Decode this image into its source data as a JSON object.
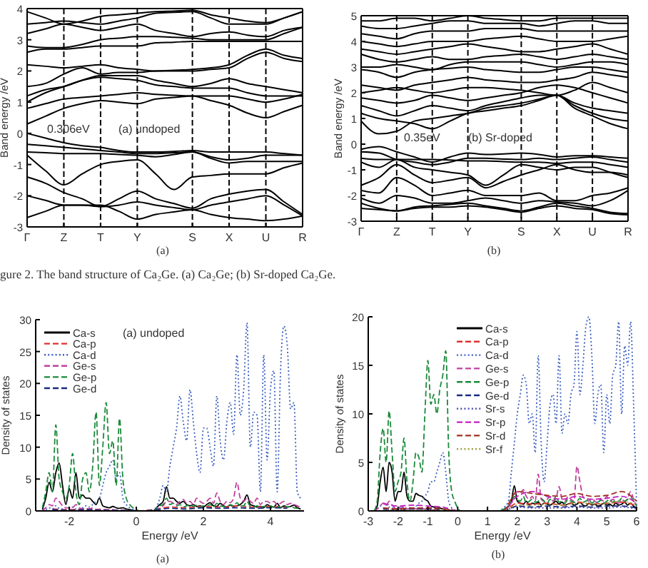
{
  "chart_data": [
    {
      "type": "line",
      "ylabel": "Band energy /eV",
      "categories": [
        "Γ",
        null,
        "Z",
        null,
        "T",
        null,
        "Y",
        null,
        null,
        "S",
        null,
        "X",
        null,
        "U",
        null,
        "R"
      ],
      "ylim": [
        -3,
        4
      ],
      "yticks": [
        -3,
        -2,
        -1,
        0,
        1,
        2,
        3,
        4
      ],
      "ref_lines": [
        {
          "axis": "x",
          "value": "Z",
          "line_style": "dashed"
        },
        {
          "axis": "x",
          "value": "T",
          "line_style": "dashed"
        },
        {
          "axis": "x",
          "value": "Y",
          "line_style": "dashed"
        },
        {
          "axis": "x",
          "value": "S",
          "line_style": "dashed"
        },
        {
          "axis": "x",
          "value": "X",
          "line_style": "dashed"
        },
        {
          "axis": "x",
          "value": "U",
          "line_style": "dashed"
        }
      ],
      "annotations": [
        "0.306eV",
        "(a) undoped",
        "(a)",
        "gure 2. The band structure of Ca₂Ge. (a) Ca₂Ge; (b) Sr-doped Ca₂Ge."
      ],
      "series": [
        {
          "color": "#000000",
          "values": [
            0.3,
            0.55,
            0.8,
            0.95,
            1.05,
            1.0,
            0.95,
            1.1,
            1.15,
            1.2,
            1.05,
            0.9,
            0.65,
            0.5,
            0.7,
            0.9
          ]
        },
        {
          "color": "#000000",
          "values": [
            0.8,
            0.95,
            1.1,
            1.15,
            1.2,
            1.25,
            1.3,
            1.25,
            1.22,
            1.2,
            1.2,
            1.2,
            1.1,
            1.0,
            1.1,
            1.25
          ]
        },
        {
          "color": "#000000",
          "values": [
            1.0,
            1.3,
            1.5,
            1.7,
            1.8,
            1.75,
            1.7,
            1.55,
            1.5,
            1.45,
            1.45,
            1.45,
            1.3,
            1.2,
            1.2,
            1.2
          ]
        },
        {
          "color": "#000000",
          "values": [
            1.2,
            1.4,
            1.5,
            1.7,
            1.85,
            1.85,
            1.85,
            1.7,
            1.6,
            1.5,
            1.6,
            1.75,
            1.6,
            1.5,
            1.4,
            1.3
          ]
        },
        {
          "color": "#000000",
          "values": [
            1.5,
            1.6,
            1.9,
            2.1,
            1.9,
            1.95,
            1.95,
            2.0,
            2.0,
            2.0,
            2.05,
            2.1,
            2.4,
            2.6,
            2.4,
            2.3
          ]
        },
        {
          "color": "#000000",
          "values": [
            2.2,
            2.15,
            2.1,
            2.15,
            2.2,
            2.1,
            2.05,
            2.0,
            2.02,
            2.05,
            2.1,
            2.2,
            2.5,
            2.7,
            2.5,
            2.4
          ]
        },
        {
          "color": "#000000",
          "values": [
            2.6,
            2.7,
            2.7,
            2.75,
            2.8,
            2.8,
            2.8,
            2.9,
            2.92,
            2.95,
            2.95,
            2.95,
            2.95,
            2.95,
            2.95,
            2.95
          ]
        },
        {
          "color": "#000000",
          "values": [
            2.8,
            2.75,
            2.75,
            2.85,
            3.0,
            3.05,
            3.1,
            3.1,
            3.08,
            3.05,
            3.0,
            3.0,
            3.0,
            3.0,
            3.2,
            3.4
          ]
        },
        {
          "color": "#000000",
          "values": [
            3.2,
            3.35,
            3.5,
            3.4,
            3.3,
            3.4,
            3.5,
            3.3,
            3.2,
            3.1,
            3.2,
            3.25,
            3.15,
            3.1,
            3.3,
            3.4
          ]
        },
        {
          "color": "#000000",
          "values": [
            3.5,
            3.55,
            3.6,
            3.55,
            3.5,
            3.6,
            3.7,
            3.85,
            3.88,
            3.9,
            3.7,
            3.5,
            3.5,
            3.5,
            3.7,
            3.9
          ]
        },
        {
          "color": "#000000",
          "values": [
            3.9,
            3.7,
            3.5,
            3.6,
            3.75,
            3.8,
            3.85,
            3.9,
            3.92,
            3.95,
            3.8,
            3.7,
            3.6,
            3.55,
            3.7,
            3.9
          ]
        },
        {
          "color": "#000000",
          "values": [
            0,
            -0.15,
            -0.3,
            -0.4,
            -0.45,
            -0.55,
            -0.6,
            -0.6,
            -0.58,
            -0.55,
            -0.6,
            -0.6,
            -0.6,
            -0.6,
            -0.65,
            -0.7
          ]
        },
        {
          "color": "#000000",
          "values": [
            -0.35,
            -0.4,
            -0.45,
            -0.5,
            -0.55,
            -0.6,
            -0.65,
            -0.65,
            -0.62,
            -0.6,
            -0.75,
            -0.85,
            -0.8,
            -0.7,
            -0.7,
            -0.7
          ]
        },
        {
          "color": "#000000",
          "values": [
            -0.6,
            -0.62,
            -0.65,
            -0.65,
            -0.65,
            -0.68,
            -0.7,
            -0.75,
            -0.68,
            -0.6,
            -0.8,
            -0.95,
            -0.9,
            -0.9,
            -0.9,
            -0.9
          ]
        },
        {
          "color": "#000000",
          "values": [
            -0.7,
            -1.2,
            -1.65,
            -1.3,
            -1.0,
            -0.9,
            -0.85,
            -1.3,
            -1.8,
            -1.4,
            -1.35,
            -1.3,
            -1.3,
            -1.3,
            -1.1,
            -0.95
          ]
        },
        {
          "color": "#000000",
          "values": [
            -1.4,
            -1.6,
            -1.9,
            -2.1,
            -2.35,
            -2.1,
            -1.85,
            -2.1,
            -2.25,
            -2.4,
            -2.1,
            -1.95,
            -1.85,
            -1.8,
            -2.2,
            -2.6
          ]
        },
        {
          "color": "#000000",
          "values": [
            -2.0,
            -2.15,
            -2.3,
            -2.3,
            -2.3,
            -2.5,
            -2.75,
            -2.6,
            -2.52,
            -2.45,
            -2.6,
            -2.7,
            -2.75,
            -2.8,
            -2.75,
            -2.65
          ]
        },
        {
          "color": "#000000",
          "values": [
            -2.7,
            -2.5,
            -2.3,
            -2.3,
            -2.35,
            -2.3,
            -2.2,
            -2.3,
            -2.38,
            -2.45,
            -2.3,
            -2.2,
            -2.1,
            -2.0,
            -2.3,
            -2.65
          ]
        }
      ]
    },
    {
      "type": "line",
      "ylabel": "Band energy /eV",
      "categories": [
        "Γ",
        null,
        "Z",
        null,
        "T",
        null,
        "Y",
        null,
        null,
        "S",
        null,
        "X",
        null,
        "U",
        null,
        "R"
      ],
      "ylim": [
        -3,
        5
      ],
      "yticks": [
        -3,
        -2,
        -1,
        0,
        1,
        2,
        3,
        4,
        5
      ],
      "ref_lines": [
        {
          "axis": "x",
          "value": "Z",
          "line_style": "dashed"
        },
        {
          "axis": "x",
          "value": "T",
          "line_style": "dashed"
        },
        {
          "axis": "x",
          "value": "Y",
          "line_style": "dashed"
        },
        {
          "axis": "x",
          "value": "S",
          "line_style": "dashed"
        },
        {
          "axis": "x",
          "value": "X",
          "line_style": "dashed"
        },
        {
          "axis": "x",
          "value": "U",
          "line_style": "dashed"
        }
      ],
      "annotations": [
        "0.35eV",
        "(b) Sr-doped",
        "(b)"
      ],
      "series": [
        {
          "color": "#000000",
          "values": [
            0.9,
            0.4,
            0.5,
            0.9,
            1.0,
            1.1,
            1.2,
            1.4,
            1.5,
            1.6,
            1.75,
            1.9,
            1.4,
            1.1,
            0.8,
            0.6
          ]
        },
        {
          "color": "#000000",
          "values": [
            1.2,
            1.0,
            0.9,
            0.8,
            0.6,
            0.9,
            1.2,
            1.3,
            1.4,
            1.5,
            1.7,
            1.9,
            1.5,
            1.2,
            1.0,
            0.9
          ]
        },
        {
          "color": "#000000",
          "values": [
            1.5,
            1.3,
            1.1,
            1.3,
            1.5,
            1.4,
            1.3,
            1.5,
            1.65,
            1.8,
            1.9,
            1.9,
            1.6,
            1.4,
            1.3,
            1.2
          ]
        },
        {
          "color": "#000000",
          "values": [
            1.8,
            1.7,
            1.6,
            1.7,
            1.9,
            1.8,
            1.7,
            1.8,
            1.9,
            2.0,
            2.2,
            2.3,
            2.2,
            2.0,
            1.8,
            1.6
          ]
        },
        {
          "color": "#000000",
          "values": [
            2.0,
            2.1,
            2.2,
            2.1,
            2.0,
            2.1,
            2.2,
            2.2,
            2.15,
            2.1,
            2.0,
            1.9,
            2.1,
            2.4,
            2.2,
            2.0
          ]
        },
        {
          "color": "#000000",
          "values": [
            2.3,
            2.2,
            2.1,
            2.3,
            2.4,
            2.5,
            2.6,
            2.5,
            2.45,
            2.4,
            2.4,
            2.5,
            2.6,
            2.8,
            2.7,
            2.6
          ]
        },
        {
          "color": "#000000",
          "values": [
            2.9,
            2.8,
            2.6,
            2.8,
            2.9,
            2.95,
            3.0,
            2.9,
            2.85,
            2.8,
            2.8,
            2.9,
            3.0,
            3.0,
            2.9,
            2.8
          ]
        },
        {
          "color": "#000000",
          "values": [
            3.0,
            3.0,
            3.1,
            3.0,
            2.9,
            3.1,
            3.2,
            3.2,
            3.2,
            3.2,
            3.1,
            3.0,
            3.1,
            3.2,
            3.2,
            3.1
          ]
        },
        {
          "color": "#000000",
          "values": [
            3.5,
            3.3,
            3.2,
            3.3,
            3.4,
            3.3,
            3.3,
            3.4,
            3.45,
            3.5,
            3.4,
            3.3,
            3.4,
            3.5,
            3.4,
            3.3
          ]
        },
        {
          "color": "#000000",
          "values": [
            3.7,
            3.6,
            3.5,
            3.6,
            3.7,
            3.8,
            3.9,
            3.8,
            3.7,
            3.6,
            3.6,
            3.7,
            3.8,
            3.9,
            3.7,
            3.5
          ]
        },
        {
          "color": "#000000",
          "values": [
            4.0,
            3.9,
            3.8,
            3.9,
            4.0,
            4.0,
            4.0,
            4.1,
            4.15,
            4.2,
            4.1,
            4.0,
            4.0,
            4.0,
            4.1,
            4.2
          ]
        },
        {
          "color": "#000000",
          "values": [
            4.3,
            4.2,
            4.1,
            4.3,
            4.4,
            4.4,
            4.4,
            4.5,
            4.5,
            4.5,
            4.4,
            4.4,
            4.4,
            4.4,
            4.4,
            4.4
          ]
        },
        {
          "color": "#000000",
          "values": [
            4.6,
            4.5,
            4.5,
            4.6,
            4.7,
            4.8,
            4.8,
            4.7,
            4.7,
            4.7,
            4.6,
            4.7,
            4.8,
            4.8,
            4.7,
            4.7
          ]
        },
        {
          "color": "#000000",
          "values": [
            4.8,
            4.8,
            4.9,
            4.9,
            4.8,
            4.9,
            5.0,
            4.9,
            4.85,
            4.8,
            4.8,
            4.9,
            4.9,
            4.9,
            4.9,
            4.9
          ]
        },
        {
          "color": "#000000",
          "values": [
            -0.2,
            -0.1,
            -0.3,
            -0.5,
            -0.7,
            -0.5,
            -0.35,
            -0.4,
            -0.38,
            -0.35,
            -0.4,
            -0.5,
            -0.45,
            -0.45,
            -0.5,
            -0.55
          ]
        },
        {
          "color": "#000000",
          "values": [
            -0.3,
            -0.35,
            -0.6,
            -0.7,
            -0.8,
            -0.7,
            -0.55,
            -0.55,
            -0.58,
            -0.6,
            -0.55,
            -0.6,
            -0.55,
            -0.5,
            -0.6,
            -0.7
          ]
        },
        {
          "color": "#000000",
          "values": [
            -0.55,
            -0.6,
            -0.6,
            -0.6,
            -0.6,
            -0.62,
            -0.65,
            -0.65,
            -0.68,
            -0.7,
            -0.7,
            -0.75,
            -0.7,
            -0.7,
            -0.8,
            -0.9
          ]
        },
        {
          "color": "#000000",
          "values": [
            -0.7,
            -0.9,
            -0.6,
            -0.9,
            -1.0,
            -1.1,
            -1.2,
            -1.6,
            -1.2,
            -0.8,
            -0.9,
            -1.0,
            -0.9,
            -0.9,
            -1.1,
            -1.3
          ]
        },
        {
          "color": "#000000",
          "values": [
            -1.6,
            -1.3,
            -0.8,
            -1.2,
            -1.5,
            -1.4,
            -1.3,
            -1.7,
            -1.45,
            -1.2,
            -1.0,
            -0.8,
            -1.0,
            -1.1,
            -1.1,
            -1.2
          ]
        },
        {
          "color": "#000000",
          "values": [
            -1.8,
            -1.9,
            -1.3,
            -1.6,
            -2.0,
            -1.9,
            -1.8,
            -2.0,
            -2.0,
            -2.0,
            -1.9,
            -2.2,
            -2.2,
            -2.0,
            -1.9,
            -1.7
          ]
        },
        {
          "color": "#000000",
          "values": [
            -2.1,
            -2.3,
            -2.0,
            -2.1,
            -2.3,
            -2.3,
            -2.2,
            -2.1,
            -2.2,
            -2.3,
            -2.2,
            -2.25,
            -2.3,
            -2.4,
            -2.2,
            -1.8
          ]
        },
        {
          "color": "#000000",
          "values": [
            -2.3,
            -2.5,
            -2.6,
            -2.45,
            -2.4,
            -2.35,
            -2.3,
            -2.4,
            -2.5,
            -2.6,
            -2.45,
            -2.3,
            -2.4,
            -2.5,
            -2.65,
            -2.7
          ]
        },
        {
          "color": "#000000",
          "values": [
            -2.5,
            -2.55,
            -2.6,
            -2.5,
            -2.45,
            -2.45,
            -2.4,
            -2.45,
            -2.55,
            -2.65,
            -2.5,
            -2.4,
            -2.5,
            -2.55,
            -2.7,
            -2.75
          ]
        }
      ]
    },
    {
      "type": "line",
      "xlabel": "Energy /eV",
      "ylabel": "Density of states",
      "legend": "top left",
      "xlim": [
        -3,
        5
      ],
      "xticks": [
        -2,
        0,
        2,
        4
      ],
      "ylim": [
        0,
        30
      ],
      "yticks": [
        0,
        5,
        10,
        15,
        20,
        25,
        30
      ],
      "annotations": [
        "(a) undoped",
        "(a)"
      ],
      "x": [
        -2.8,
        -2.7,
        -2.6,
        -2.5,
        -2.4,
        -2.3,
        -2.2,
        -2.1,
        -2.0,
        -1.9,
        -1.8,
        -1.7,
        -1.6,
        -1.5,
        -1.4,
        -1.3,
        -1.2,
        -1.1,
        -1.0,
        -0.9,
        -0.8,
        -0.7,
        -0.6,
        -0.5,
        -0.4,
        -0.3,
        -0.2,
        -0.1,
        0,
        0.1,
        0.2,
        0.3,
        0.4,
        0.5,
        0.6,
        0.7,
        0.8,
        0.9,
        1.0,
        1.1,
        1.2,
        1.3,
        1.4,
        1.5,
        1.6,
        1.7,
        1.8,
        1.9,
        2.0,
        2.1,
        2.2,
        2.3,
        2.4,
        2.5,
        2.6,
        2.7,
        2.8,
        2.9,
        3.0,
        3.1,
        3.2,
        3.3,
        3.4,
        3.5,
        3.6,
        3.7,
        3.8,
        3.9,
        4.0,
        4.1,
        4.2,
        4.3,
        4.4,
        4.5,
        4.6,
        4.7,
        4.8,
        4.9
      ],
      "series": [
        {
          "name": "Ca-s",
          "color": "#000000",
          "line_style": "solid",
          "values": [
            0.2,
            2,
            4.5,
            3,
            6,
            7.5,
            4,
            1,
            3.5,
            2,
            6,
            2,
            2.5,
            2,
            2,
            1.5,
            1,
            2,
            0.8,
            0.6,
            0.5,
            0.7,
            0.5,
            0.4,
            0.5,
            0.3,
            0.2,
            0.1,
            0,
            0,
            0,
            0,
            0,
            0,
            0.5,
            1,
            1.5,
            3.8,
            2,
            2,
            1.5,
            1.2,
            1.5,
            1,
            0.8,
            1,
            0.7,
            0.8,
            0.6,
            1,
            1.3,
            0.8,
            0.7,
            1.2,
            0.8,
            0.6,
            0.9,
            0.7,
            0.8,
            1,
            1.5,
            2.5,
            1,
            0.8,
            0.6,
            0.7,
            0.5,
            1,
            0.7,
            0.6,
            1.2,
            0.5,
            0.8,
            0.6,
            0.7,
            0.9,
            0.5,
            0.3
          ]
        },
        {
          "name": "Ca-p",
          "color": "#e03030",
          "line_style": "dashed",
          "x": [
            -2.5,
            -2,
            -1.5,
            -1,
            -0.5,
            0,
            0.5,
            1,
            1.5,
            2,
            2.5,
            3,
            3.5,
            4,
            4.5
          ],
          "values": [
            0.3,
            0.2,
            0.3,
            0.2,
            0.1,
            0,
            0.2,
            0.6,
            0.5,
            0.7,
            0.6,
            0.8,
            0.6,
            0.7,
            0.5
          ]
        },
        {
          "name": "Ca-d",
          "color": "#3b5fc0",
          "line_style": "dotted",
          "values": [
            0,
            0.2,
            0.5,
            0.3,
            0.8,
            0.4,
            0.3,
            0.2,
            0.5,
            0.6,
            0.3,
            0.2,
            0.5,
            0.8,
            0.6,
            1,
            1.5,
            2,
            4,
            6,
            7,
            8,
            5,
            6,
            2,
            1,
            0.5,
            0.2,
            0,
            0,
            0,
            0,
            0,
            0,
            0.5,
            2,
            4,
            3,
            7,
            10,
            13,
            18,
            14,
            11,
            19,
            14,
            9,
            6,
            13,
            13,
            10,
            7,
            18,
            11,
            8,
            14,
            17,
            12,
            24.5,
            15,
            19,
            29.5,
            10,
            15.5,
            15,
            3,
            24.5,
            8,
            19,
            22,
            3,
            22,
            29,
            26,
            16,
            17,
            3,
            2
          ]
        },
        {
          "name": "Ge-s",
          "color": "#c040a0",
          "line_style": "dashed",
          "values": [
            0,
            0.5,
            1,
            0.8,
            2,
            1.5,
            0.8,
            0.5,
            0.5,
            0.5,
            1,
            0.5,
            0.3,
            0.4,
            0.3,
            0.5,
            0.2,
            0.3,
            0.2,
            0.2,
            0.1,
            0.2,
            0.1,
            0.1,
            0.1,
            0,
            0,
            0,
            0,
            0,
            0,
            0,
            0,
            0,
            0.2,
            0.5,
            0.8,
            1.5,
            1.5,
            1.2,
            1,
            1.5,
            1.8,
            1.2,
            1.5,
            1,
            2,
            1.5,
            1.2,
            1.5,
            2,
            1.2,
            2.8,
            1.5,
            1,
            1.5,
            1.3,
            2,
            4.5,
            2,
            1.5,
            2,
            1.5,
            1.2,
            2,
            1,
            1.5,
            1.5,
            1.2,
            1.5,
            1,
            1.2,
            1.5,
            1,
            1.2,
            1,
            0.8,
            0.5
          ]
        },
        {
          "name": "Ge-p",
          "color": "#1a8a3a",
          "line_style": "dashed",
          "values": [
            0.5,
            3,
            6,
            3,
            13.5,
            5,
            3,
            2,
            4,
            9,
            3,
            1,
            5,
            6,
            3,
            7,
            15.5,
            4,
            10,
            17,
            9,
            11,
            4,
            14.5,
            5,
            2,
            1,
            0.5,
            0.2,
            0,
            0,
            0,
            0,
            0,
            0.3,
            0.8,
            1,
            2,
            1,
            1.2,
            0.8,
            1,
            0.6,
            0.8,
            1,
            0.7,
            0.9,
            0.6,
            0.8,
            0.7,
            1,
            0.6,
            1.2,
            0.8,
            0.7,
            0.6,
            1,
            0.8,
            1.3,
            0.7,
            0.8,
            1.5,
            0.7,
            0.6,
            0.8,
            0.5,
            0.7,
            0.6,
            0.8,
            0.6,
            0.7,
            0.5,
            0.9,
            0.6,
            0.7,
            0.5,
            0.4,
            0.3
          ]
        },
        {
          "name": "Ge-d",
          "color": "#1a2a80",
          "line_style": "dashed",
          "x": [
            -2.5,
            -2,
            -1.5,
            -1,
            -0.5,
            0,
            0.5,
            1,
            1.5,
            2,
            2.5,
            3,
            3.5,
            4,
            4.5
          ],
          "values": [
            0.2,
            0.1,
            0.2,
            0.1,
            0.1,
            0,
            0.1,
            0.4,
            0.3,
            0.5,
            0.4,
            0.5,
            0.4,
            0.5,
            0.4
          ]
        }
      ]
    },
    {
      "type": "line",
      "xlabel": "Energy /eV",
      "ylabel": "Density of states",
      "legend": "top",
      "xlim": [
        -3,
        6
      ],
      "xticks": [
        -3,
        -2,
        -1,
        0,
        1,
        2,
        3,
        4,
        5,
        6
      ],
      "ylim": [
        0,
        20
      ],
      "yticks": [
        0,
        5,
        10,
        15,
        20
      ],
      "annotations": [
        "(b)"
      ],
      "x": [
        -2.8,
        -2.7,
        -2.6,
        -2.5,
        -2.4,
        -2.3,
        -2.2,
        -2.1,
        -2.0,
        -1.9,
        -1.8,
        -1.7,
        -1.6,
        -1.5,
        -1.4,
        -1.3,
        -1.2,
        -1.1,
        -1.0,
        -0.9,
        -0.8,
        -0.7,
        -0.6,
        -0.5,
        -0.4,
        -0.3,
        -0.2,
        -0.1,
        0,
        0.1,
        0.2,
        0.3,
        0.4,
        0.5,
        0.6,
        0.7,
        0.8,
        0.9,
        1.0,
        1.1,
        1.2,
        1.3,
        1.4,
        1.5,
        1.6,
        1.7,
        1.8,
        1.9,
        2.0,
        2.1,
        2.2,
        2.3,
        2.4,
        2.5,
        2.6,
        2.7,
        2.8,
        2.9,
        3.0,
        3.1,
        3.2,
        3.3,
        3.4,
        3.5,
        3.6,
        3.7,
        3.8,
        3.9,
        4.0,
        4.1,
        4.2,
        4.3,
        4.4,
        4.5,
        4.6,
        4.7,
        4.8,
        4.9,
        5.0,
        5.1,
        5.2,
        5.3,
        5.4,
        5.5,
        5.6,
        5.7,
        5.8,
        5.9,
        6.0
      ],
      "series": [
        {
          "name": "Ca-s",
          "color": "#000000",
          "line_style": "solid",
          "values": [
            0,
            0.5,
            3,
            4.5,
            2,
            5,
            4,
            1,
            2,
            2,
            4,
            1.5,
            1,
            1,
            1.8,
            1.6,
            1.5,
            1.2,
            1,
            0.5,
            0.4,
            0.3,
            0.3,
            0.2,
            0.2,
            0.1,
            0,
            0,
            0,
            0,
            0,
            0,
            0,
            0,
            0,
            0,
            0,
            0,
            0,
            0,
            0,
            0,
            0,
            0,
            0.2,
            0.5,
            1,
            2.6,
            1,
            0.8,
            0.7,
            1,
            0.6,
            0.8,
            0.7,
            0.9,
            0.6,
            0.8,
            0.7,
            0.6,
            0.8,
            1,
            0.7,
            0.9,
            0.6,
            0.7,
            0.8,
            0.6,
            0.7,
            0.9,
            0.6,
            0.5,
            0.8,
            0.6,
            0.7,
            0.5,
            0.6,
            0.8,
            0.6,
            0.7,
            0.5,
            0.8,
            0.6,
            0.7,
            0.9,
            0.6,
            0.8,
            0.5,
            0.3
          ]
        },
        {
          "name": "Ca-p",
          "color": "#e03030",
          "line_style": "dashed",
          "x": [
            -2.5,
            -2,
            -1.5,
            -1,
            -0.5,
            0,
            0.5,
            1,
            1.5,
            2,
            2.5,
            3,
            3.5,
            4,
            4.5,
            5,
            5.5,
            6
          ],
          "values": [
            0.3,
            0.2,
            0.3,
            0.3,
            0.2,
            0,
            0,
            0,
            0,
            0.8,
            0.7,
            0.8,
            0.6,
            0.9,
            0.7,
            0.8,
            0.9,
            0.5
          ]
        },
        {
          "name": "Ca-d",
          "color": "#3b5fc0",
          "line_style": "dotted",
          "values": [
            0,
            0.2,
            0.5,
            0.3,
            0.6,
            0.4,
            0.3,
            0.2,
            0.3,
            0.4,
            0.3,
            0.2,
            0.3,
            0.6,
            0.5,
            0.8,
            1,
            1.5,
            2,
            3,
            3,
            4,
            5,
            6,
            4,
            1,
            0.3,
            0.1,
            0,
            0,
            0,
            0,
            0,
            0,
            0,
            0,
            0,
            0,
            0,
            0,
            0,
            0,
            0,
            0.2,
            0.5,
            1,
            4,
            7,
            10,
            12,
            14,
            13,
            9,
            10,
            6,
            16,
            7,
            3,
            7,
            11,
            12,
            9,
            16,
            8,
            10,
            9,
            12,
            13,
            18.5,
            12,
            15,
            19,
            20,
            16,
            9,
            12,
            13,
            6,
            12,
            9,
            14,
            15,
            19.5,
            10,
            17,
            15,
            19.5,
            11,
            0.5
          ]
        },
        {
          "name": "Ge-s",
          "color": "#c040a0",
          "line_style": "dashed",
          "values": [
            0,
            0.2,
            0.5,
            0.8,
            0.5,
            1,
            0.6,
            0.3,
            0.2,
            0.3,
            0.5,
            0.2,
            0.2,
            0.3,
            0.2,
            0.3,
            0.2,
            0.2,
            0.1,
            0.1,
            0.1,
            0.1,
            0,
            0,
            0,
            0,
            0,
            0,
            0,
            0,
            0,
            0,
            0,
            0,
            0,
            0,
            0,
            0,
            0,
            0,
            0,
            0,
            0,
            0,
            0.2,
            0.4,
            0.8,
            1.5,
            2,
            1.8,
            2.2,
            1.5,
            1.2,
            1.5,
            1,
            3.8,
            1.2,
            1,
            1.2,
            1.5,
            1,
            1.3,
            2.5,
            1.2,
            1,
            1.5,
            1.2,
            1,
            4.6,
            3,
            1.5,
            1.2,
            1,
            1.3,
            1,
            0.8,
            1.2,
            1,
            1.5,
            1,
            1.2,
            1,
            0.8,
            1.2,
            1,
            1.3,
            2,
            1.2,
            0.5
          ]
        },
        {
          "name": "Ge-p",
          "color": "#1a8a3a",
          "line_style": "dashed",
          "values": [
            0,
            1,
            6,
            8.5,
            5,
            10.3,
            6,
            2,
            3,
            4,
            7.5,
            3,
            1,
            3,
            6,
            5.5,
            4,
            10,
            15.5,
            11,
            12,
            10,
            12.5,
            14,
            16.5,
            6,
            2,
            1,
            0.3,
            0,
            0,
            0,
            0,
            0,
            0,
            0,
            0,
            0,
            0,
            0,
            0,
            0,
            0,
            0.1,
            0.3,
            0.5,
            1,
            1.5,
            1.2,
            1,
            1.5,
            0.8,
            1,
            1.2,
            0.9,
            1,
            1.3,
            1,
            0.8,
            1.2,
            1,
            1.5,
            0.9,
            1,
            0.8,
            1.2,
            1,
            0.9,
            1,
            1.3,
            0.9,
            1,
            1.2,
            0.8,
            1,
            0.9,
            1.1,
            0.8,
            1,
            1.2,
            0.9,
            1.1,
            1,
            1.3,
            1,
            1.2,
            1.4,
            1,
            0.5
          ]
        },
        {
          "name": "Ge-d",
          "color": "#1a2a80",
          "line_style": "dashed",
          "x": [
            -2.5,
            -2,
            -1.5,
            -1,
            -0.5,
            0,
            0.5,
            1,
            1.5,
            2,
            2.5,
            3,
            3.5,
            4,
            4.5,
            5,
            5.5,
            6
          ],
          "values": [
            0.2,
            0.1,
            0.2,
            0.2,
            0.1,
            0,
            0,
            0,
            0,
            0.5,
            0.4,
            0.5,
            0.4,
            0.5,
            0.4,
            0.5,
            0.5,
            0.3
          ]
        },
        {
          "name": "Sr-s",
          "color": "#5050b0",
          "line_style": "dotted",
          "x": [
            -2.5,
            -2,
            -1.5,
            -1,
            -0.5,
            0,
            0.5,
            1,
            1.5,
            2,
            2.5,
            3,
            3.5,
            4,
            4.5,
            5,
            5.5,
            6
          ],
          "values": [
            0.1,
            0.1,
            0.1,
            0.1,
            0.1,
            0,
            0,
            0,
            0,
            0.4,
            0.3,
            0.3,
            0.3,
            0.4,
            0.3,
            0.3,
            0.4,
            0.2
          ]
        },
        {
          "name": "Sr-p",
          "color": "#c020c0",
          "line_style": "dashed",
          "x": [
            -2.5,
            -2,
            -1.5,
            -1,
            -0.5,
            0,
            0.5,
            1,
            1.5,
            2,
            2.5,
            3,
            3.5,
            4,
            4.5,
            5,
            5.5,
            6
          ],
          "values": [
            0.8,
            0.5,
            0.6,
            0.5,
            0.4,
            0,
            0,
            0,
            0,
            1.5,
            2,
            1.5,
            1.2,
            1.5,
            1.2,
            1.3,
            1.5,
            0.8
          ]
        },
        {
          "name": "Sr-d",
          "color": "#a03020",
          "line_style": "dashed",
          "x": [
            -2.5,
            -2,
            -1.5,
            -1,
            -0.5,
            0,
            0.5,
            1,
            1.5,
            2,
            2.5,
            3,
            3.5,
            4,
            4.5,
            5,
            5.5,
            6
          ],
          "values": [
            0.3,
            0.2,
            0.3,
            0.3,
            0.2,
            0,
            0,
            0,
            0,
            2,
            1.8,
            1.6,
            1.5,
            1.8,
            1.5,
            1.6,
            2,
            1
          ]
        },
        {
          "name": "Sr-f",
          "color": "#a0a040",
          "line_style": "dotted",
          "x": [
            -2.5,
            -2,
            -1.5,
            -1,
            -0.5,
            0,
            0.5,
            1,
            1.5,
            2,
            2.5,
            3,
            3.5,
            4,
            4.5,
            5,
            5.5,
            6
          ],
          "values": [
            0.1,
            0.1,
            0.1,
            0.1,
            0.1,
            0,
            0,
            0,
            0,
            0.6,
            0.6,
            0.7,
            0.6,
            0.8,
            0.7,
            0.8,
            1,
            0.6
          ]
        }
      ]
    }
  ]
}
